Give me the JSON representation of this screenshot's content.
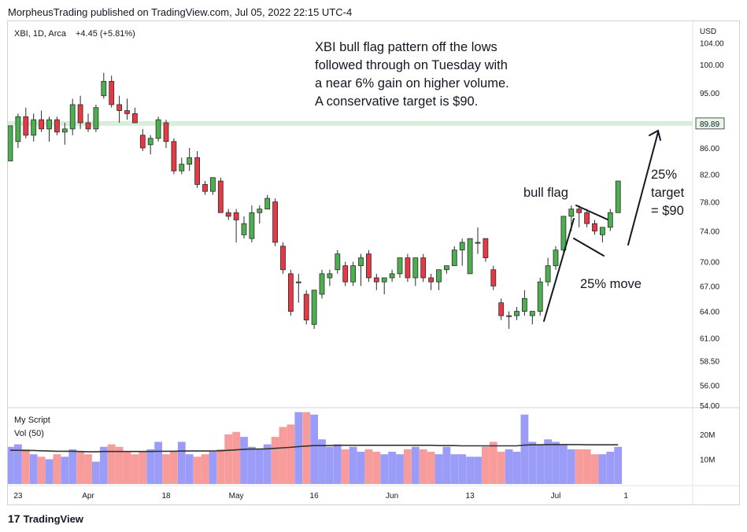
{
  "header": {
    "publisher_line": "MorpheusTrading published on TradingView.com, Jul 05, 2022 22:15 UTC-4"
  },
  "footer": {
    "brand_mark": "17",
    "brand": "TradingView"
  },
  "chart_data": {
    "type": "candlestick",
    "symbol_line": "XBI, 1D, Arca",
    "change_text": "+4.45 (+5.81%)",
    "price_axis_unit": "USD",
    "y_tick_labels": [
      "104.00",
      "100.00",
      "95.00",
      "89.89",
      "86.00",
      "82.00",
      "78.00",
      "74.00",
      "70.00",
      "67.00",
      "64.00",
      "61.00",
      "58.50",
      "56.00",
      "54.00"
    ],
    "y_ticks": [
      104,
      100,
      95,
      86,
      82,
      78,
      74,
      70,
      67,
      64,
      61,
      58.5,
      56,
      54
    ],
    "ylim": [
      54,
      106
    ],
    "scale": "log",
    "x_tick_labels": [
      "23",
      "Apr",
      "18",
      "May",
      "16",
      "Jun",
      "13",
      "Jul",
      "1"
    ],
    "x_ticks_at_bar": [
      1,
      10,
      20,
      29,
      39,
      49,
      59,
      70,
      79
    ],
    "horizontal_level": {
      "value": 89.89,
      "label": "89.89",
      "color": "#d7efd9"
    },
    "colors": {
      "up": "#4caf50",
      "down": "#e53945",
      "border": "#2b2b2b",
      "vol_up": "#9b9cf7",
      "vol_down": "#f79b9b",
      "ma_line": "#333333"
    },
    "candles": [
      {
        "o": 84,
        "h": 89.5,
        "l": 84,
        "c": 89.5
      },
      {
        "o": 87,
        "h": 91.5,
        "l": 86,
        "c": 91
      },
      {
        "o": 91,
        "h": 92.5,
        "l": 87.5,
        "c": 88
      },
      {
        "o": 88,
        "h": 91.5,
        "l": 87,
        "c": 90.5
      },
      {
        "o": 90.5,
        "h": 92,
        "l": 88.5,
        "c": 89
      },
      {
        "o": 89,
        "h": 91,
        "l": 87,
        "c": 90.5
      },
      {
        "o": 90.5,
        "h": 91,
        "l": 88,
        "c": 88.5
      },
      {
        "o": 88.5,
        "h": 90,
        "l": 86.5,
        "c": 89
      },
      {
        "o": 89,
        "h": 94,
        "l": 88,
        "c": 93
      },
      {
        "o": 93,
        "h": 94.5,
        "l": 89,
        "c": 90
      },
      {
        "o": 90,
        "h": 91.5,
        "l": 88.5,
        "c": 89
      },
      {
        "o": 89,
        "h": 93,
        "l": 88.5,
        "c": 92.5
      },
      {
        "o": 94.5,
        "h": 98.5,
        "l": 94,
        "c": 97
      },
      {
        "o": 97,
        "h": 98,
        "l": 92.5,
        "c": 93
      },
      {
        "o": 93,
        "h": 94.5,
        "l": 90,
        "c": 92
      },
      {
        "o": 92,
        "h": 94,
        "l": 90.5,
        "c": 91.5
      },
      {
        "o": 91.5,
        "h": 92.5,
        "l": 90,
        "c": 90
      },
      {
        "o": 88,
        "h": 89,
        "l": 85.5,
        "c": 86
      },
      {
        "o": 86.5,
        "h": 88,
        "l": 85,
        "c": 87.5
      },
      {
        "o": 87.5,
        "h": 91,
        "l": 87,
        "c": 90.5
      },
      {
        "o": 90,
        "h": 90.5,
        "l": 86,
        "c": 87
      },
      {
        "o": 87,
        "h": 87.5,
        "l": 82,
        "c": 82.5
      },
      {
        "o": 82.5,
        "h": 84.5,
        "l": 82,
        "c": 83.5
      },
      {
        "o": 83.5,
        "h": 86,
        "l": 82.5,
        "c": 84.5
      },
      {
        "o": 84.5,
        "h": 85.5,
        "l": 80,
        "c": 80.5
      },
      {
        "o": 80.5,
        "h": 81,
        "l": 79,
        "c": 79.5
      },
      {
        "o": 79.5,
        "h": 81.5,
        "l": 79,
        "c": 81.5
      },
      {
        "o": 81,
        "h": 81.5,
        "l": 76.5,
        "c": 76.5
      },
      {
        "o": 76.5,
        "h": 77,
        "l": 75.5,
        "c": 76
      },
      {
        "o": 76.5,
        "h": 77,
        "l": 72.5,
        "c": 75.5
      },
      {
        "o": 73.5,
        "h": 76,
        "l": 73,
        "c": 75
      },
      {
        "o": 73,
        "h": 77.5,
        "l": 72.5,
        "c": 76.5
      },
      {
        "o": 76.5,
        "h": 77.5,
        "l": 75,
        "c": 77
      },
      {
        "o": 77,
        "h": 79,
        "l": 77,
        "c": 78.5
      },
      {
        "o": 78,
        "h": 78.5,
        "l": 72,
        "c": 72.5
      },
      {
        "o": 72,
        "h": 72.5,
        "l": 68.5,
        "c": 69
      },
      {
        "o": 68.5,
        "h": 69,
        "l": 63.5,
        "c": 64
      },
      {
        "o": 67.5,
        "h": 68.5,
        "l": 65,
        "c": 67.5
      },
      {
        "o": 66,
        "h": 66.5,
        "l": 62.5,
        "c": 63
      },
      {
        "o": 62.5,
        "h": 66.5,
        "l": 62,
        "c": 66.5
      },
      {
        "o": 66,
        "h": 69,
        "l": 65.5,
        "c": 68.5
      },
      {
        "o": 68,
        "h": 69,
        "l": 67,
        "c": 68.5
      },
      {
        "o": 69,
        "h": 71.5,
        "l": 68.5,
        "c": 71
      },
      {
        "o": 69.5,
        "h": 70,
        "l": 67,
        "c": 67.5
      },
      {
        "o": 67.5,
        "h": 70,
        "l": 67,
        "c": 69.5
      },
      {
        "o": 69.5,
        "h": 71,
        "l": 67,
        "c": 70.5
      },
      {
        "o": 71,
        "h": 71.5,
        "l": 67.5,
        "c": 68
      },
      {
        "o": 68,
        "h": 68.5,
        "l": 66.5,
        "c": 67.5
      },
      {
        "o": 67.5,
        "h": 68,
        "l": 66,
        "c": 68
      },
      {
        "o": 68,
        "h": 69,
        "l": 67.5,
        "c": 68.5
      },
      {
        "o": 68.5,
        "h": 70.5,
        "l": 68,
        "c": 70.5
      },
      {
        "o": 70.5,
        "h": 71,
        "l": 67.5,
        "c": 68
      },
      {
        "o": 68,
        "h": 70.5,
        "l": 67,
        "c": 70.5
      },
      {
        "o": 70.5,
        "h": 71,
        "l": 67.5,
        "c": 68
      },
      {
        "o": 68,
        "h": 68.5,
        "l": 66.5,
        "c": 67.5
      },
      {
        "o": 67.5,
        "h": 69,
        "l": 66.5,
        "c": 69
      },
      {
        "o": 69,
        "h": 69.5,
        "l": 68.5,
        "c": 69.5
      },
      {
        "o": 69.5,
        "h": 72,
        "l": 69.5,
        "c": 71.5
      },
      {
        "o": 71.5,
        "h": 73,
        "l": 69.5,
        "c": 72.5
      },
      {
        "o": 68.5,
        "h": 73,
        "l": 68.5,
        "c": 73
      },
      {
        "o": 72.5,
        "h": 74.5,
        "l": 71,
        "c": 72.5
      },
      {
        "o": 73,
        "h": 73,
        "l": 70,
        "c": 70.5
      },
      {
        "o": 69,
        "h": 69.5,
        "l": 66.5,
        "c": 67
      },
      {
        "o": 65,
        "h": 65.5,
        "l": 63,
        "c": 63.5
      },
      {
        "o": 63.5,
        "h": 64,
        "l": 62,
        "c": 63.5
      },
      {
        "o": 63.5,
        "h": 64.5,
        "l": 63,
        "c": 64
      },
      {
        "o": 64,
        "h": 66.5,
        "l": 63.5,
        "c": 65.5
      },
      {
        "o": 63.5,
        "h": 64,
        "l": 62.5,
        "c": 64
      },
      {
        "o": 64,
        "h": 68,
        "l": 63.5,
        "c": 67.5
      },
      {
        "o": 67.5,
        "h": 70.5,
        "l": 67,
        "c": 69.5
      },
      {
        "o": 69.5,
        "h": 72,
        "l": 69,
        "c": 71.5
      },
      {
        "o": 71.5,
        "h": 76,
        "l": 71,
        "c": 76
      },
      {
        "o": 76,
        "h": 77.5,
        "l": 74,
        "c": 77
      },
      {
        "o": 77,
        "h": 77.5,
        "l": 74.5,
        "c": 76.5
      },
      {
        "o": 76.5,
        "h": 77,
        "l": 74.5,
        "c": 75
      },
      {
        "o": 75,
        "h": 75.5,
        "l": 73.5,
        "c": 74
      },
      {
        "o": 73.5,
        "h": 74.5,
        "l": 72.5,
        "c": 74.5
      },
      {
        "o": 74.5,
        "h": 77,
        "l": 74,
        "c": 76.5
      },
      {
        "o": 76.5,
        "h": 81,
        "l": 76.5,
        "c": 81
      }
    ],
    "volume": {
      "label": "My Script",
      "ma_label": "Vol (50)",
      "y_tick_labels": [
        "20M",
        "10M"
      ],
      "y_ticks": [
        20,
        10
      ],
      "unit": "M",
      "ma_period": 50,
      "values": [
        15,
        16,
        14,
        12,
        11,
        10,
        12,
        11,
        14,
        13,
        12,
        9,
        15,
        16,
        15,
        13,
        12,
        13,
        14,
        17,
        12,
        13,
        17,
        12,
        11,
        12,
        13,
        14,
        20,
        21,
        19,
        15,
        14,
        16,
        19,
        23,
        24,
        29,
        29,
        28,
        18,
        15,
        16,
        14,
        15,
        13,
        14,
        13,
        12,
        13,
        12,
        14,
        15,
        14,
        13,
        12,
        15,
        12,
        12,
        11,
        11,
        15,
        17,
        13,
        14,
        13,
        28,
        17,
        16,
        18,
        17,
        16,
        14,
        14,
        14,
        12,
        12,
        13,
        15
      ],
      "ma_values": [
        13.6,
        13.6,
        13.5,
        13.5,
        13.4,
        13.3,
        13.2,
        13.2,
        13.2,
        13.1,
        13.0,
        13.0,
        13.1,
        13.1,
        13.1,
        13.1,
        13.1,
        13.1,
        13.1,
        13.2,
        13.2,
        13.2,
        13.3,
        13.3,
        13.3,
        13.3,
        13.3,
        13.4,
        13.6,
        13.8,
        14.0,
        14.1,
        14.1,
        14.2,
        14.4,
        14.6,
        14.8,
        15.1,
        15.3,
        15.5,
        15.5,
        15.5,
        15.6,
        15.6,
        15.6,
        15.6,
        15.6,
        15.6,
        15.6,
        15.6,
        15.6,
        15.6,
        15.6,
        15.6,
        15.6,
        15.5,
        15.5,
        15.5,
        15.4,
        15.4,
        15.4,
        15.4,
        15.4,
        15.4,
        15.4,
        15.4,
        15.7,
        15.8,
        15.8,
        15.9,
        15.9,
        15.9,
        15.9,
        15.9,
        15.8,
        15.8,
        15.8,
        15.8,
        15.8
      ]
    }
  },
  "annotations": {
    "commentary": [
      "XBI bull flag pattern off the lows",
      "followed through on Tuesday with",
      "a near 6% gain on higher volume.",
      "A conservative target is $90."
    ],
    "bull_flag": "bull flag",
    "move": "25% move",
    "target": [
      "25%",
      "target",
      "= $90"
    ]
  }
}
